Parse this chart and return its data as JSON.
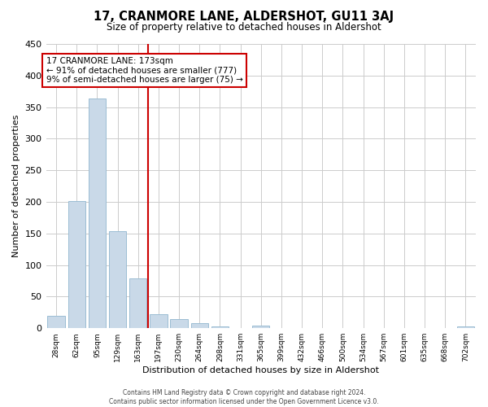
{
  "title": "17, CRANMORE LANE, ALDERSHOT, GU11 3AJ",
  "subtitle": "Size of property relative to detached houses in Aldershot",
  "xlabel": "Distribution of detached houses by size in Aldershot",
  "ylabel": "Number of detached properties",
  "bin_labels": [
    "28sqm",
    "62sqm",
    "95sqm",
    "129sqm",
    "163sqm",
    "197sqm",
    "230sqm",
    "264sqm",
    "298sqm",
    "331sqm",
    "365sqm",
    "399sqm",
    "432sqm",
    "466sqm",
    "500sqm",
    "534sqm",
    "567sqm",
    "601sqm",
    "635sqm",
    "668sqm",
    "702sqm"
  ],
  "bar_values": [
    19,
    201,
    364,
    154,
    79,
    22,
    15,
    8,
    3,
    0,
    4,
    0,
    0,
    0,
    0,
    0,
    0,
    0,
    0,
    0,
    3
  ],
  "bar_color": "#c9d9e8",
  "bar_edge_color": "#9bbdd4",
  "annotation_text": "17 CRANMORE LANE: 173sqm\n← 91% of detached houses are smaller (777)\n9% of semi-detached houses are larger (75) →",
  "annotation_box_color": "#ffffff",
  "annotation_box_edge_color": "#cc0000",
  "vline_color": "#cc0000",
  "vline_bin_index": 4.47,
  "ylim": [
    0,
    450
  ],
  "yticks": [
    0,
    50,
    100,
    150,
    200,
    250,
    300,
    350,
    400,
    450
  ],
  "footer_line1": "Contains HM Land Registry data © Crown copyright and database right 2024.",
  "footer_line2": "Contains public sector information licensed under the Open Government Licence v3.0."
}
